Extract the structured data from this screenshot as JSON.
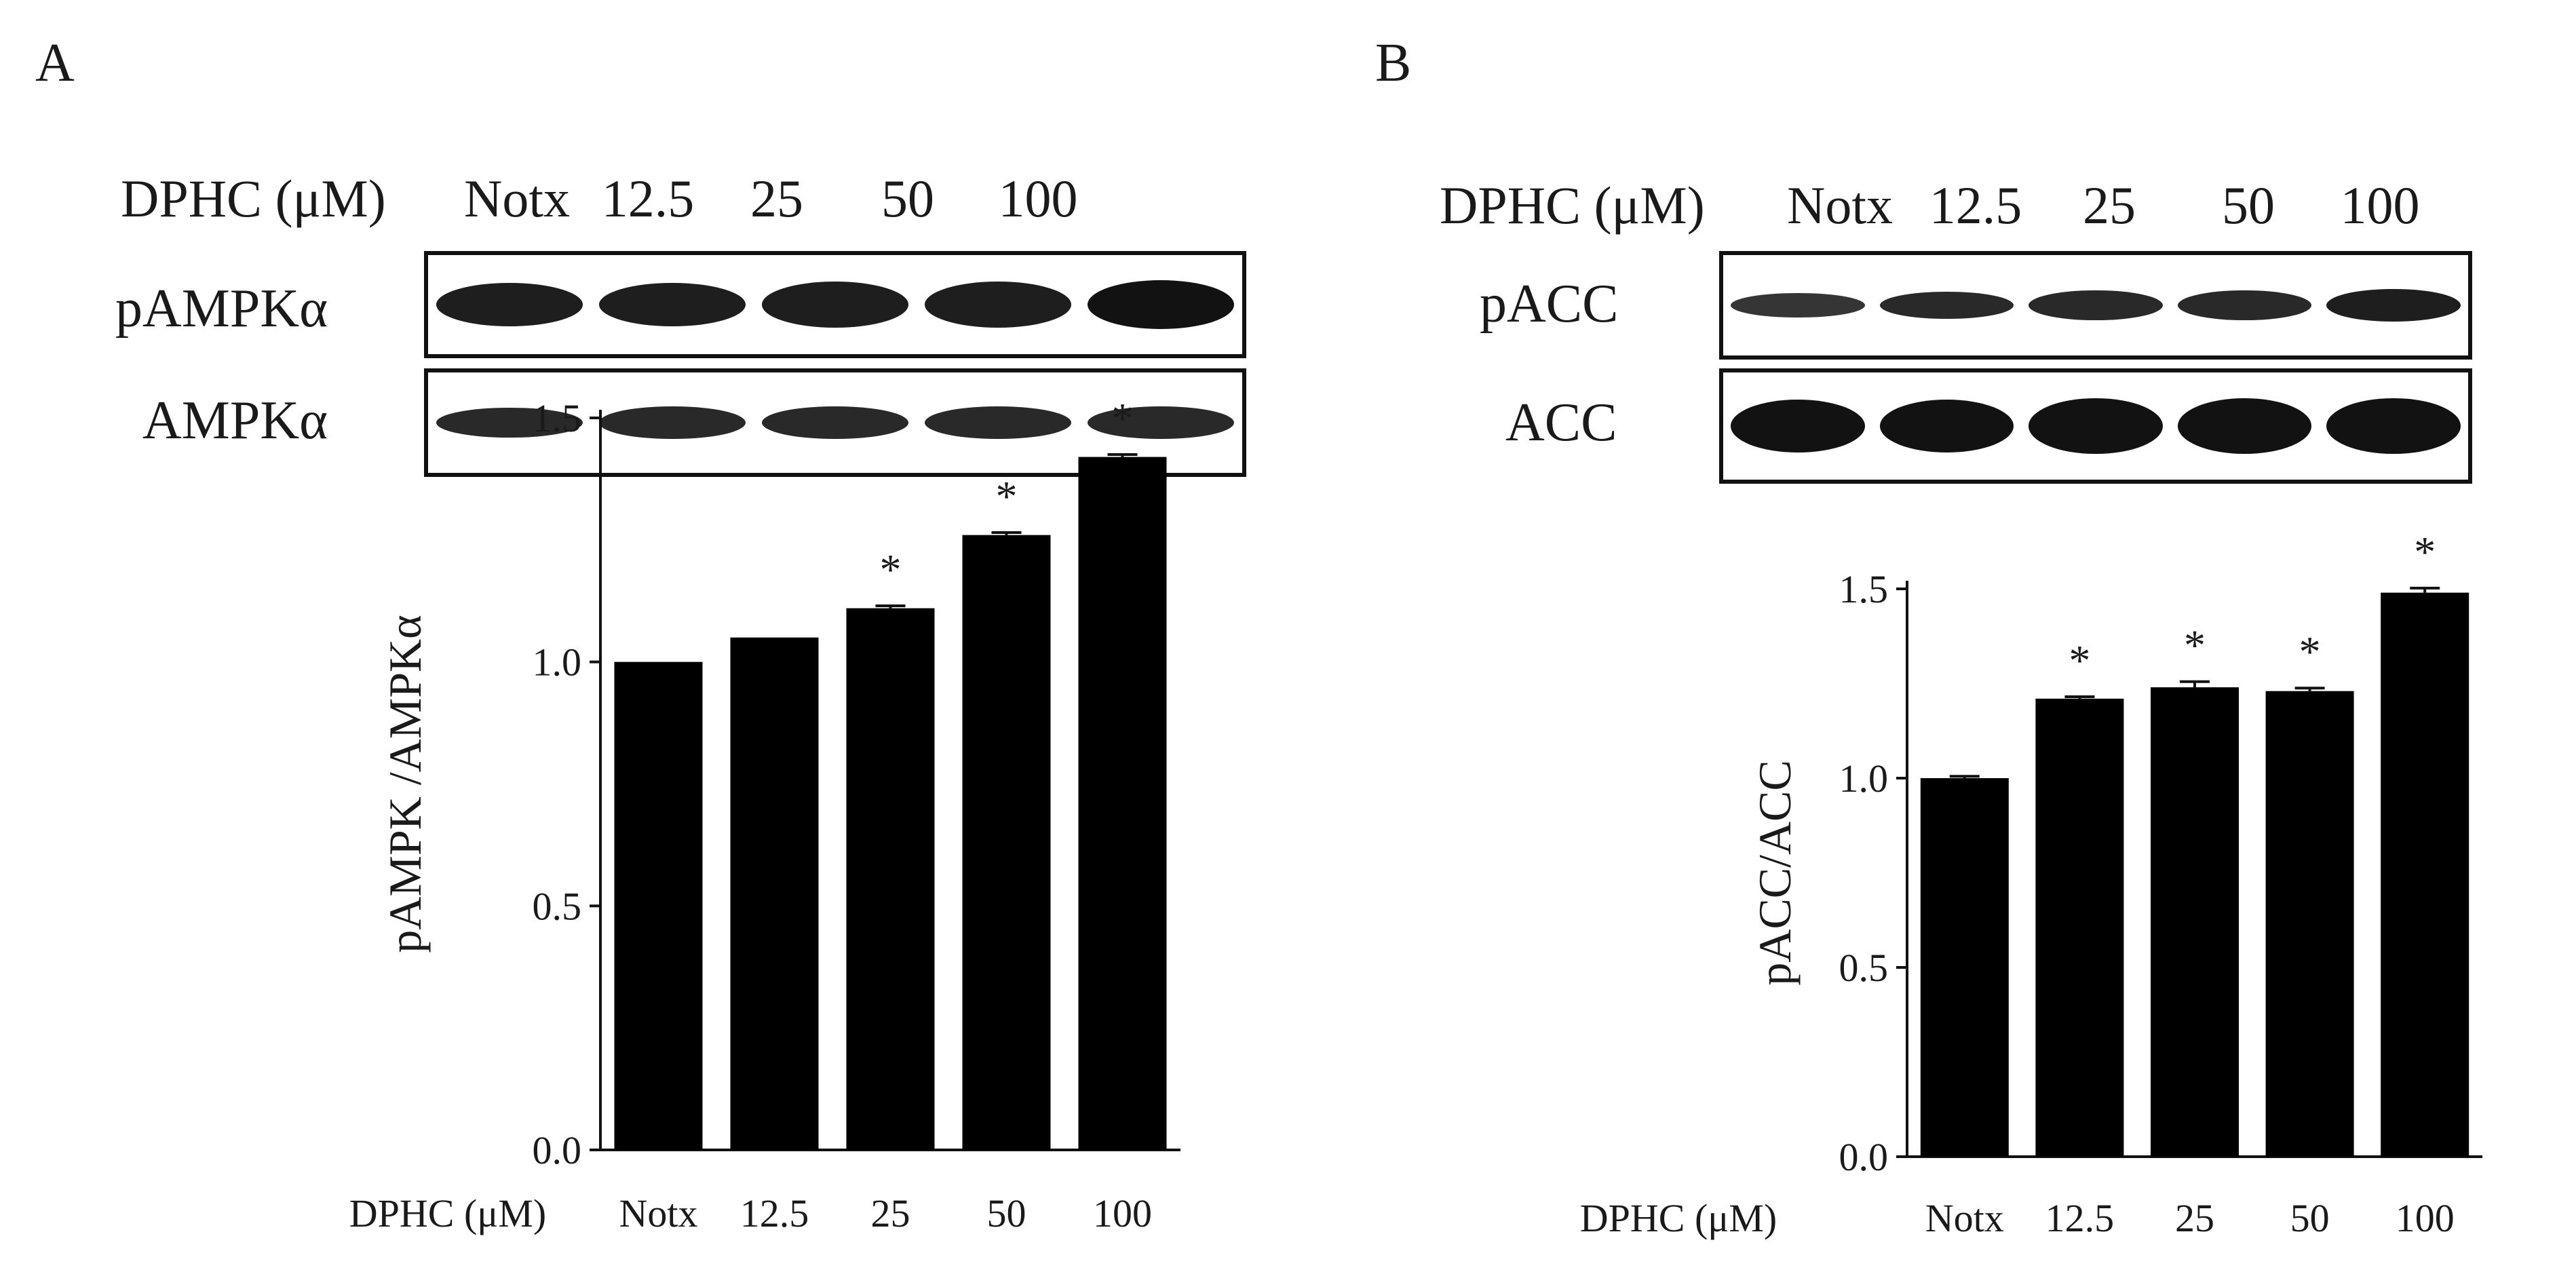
{
  "panels": [
    {
      "letter": "A",
      "blot": {
        "treatment_label": "DPHC (μM)",
        "lanes": [
          "Notx",
          "12.5",
          "25",
          "50",
          "100"
        ],
        "rows": [
          {
            "label": "pAMPKα",
            "band_intensity": [
              0.95,
              0.95,
              0.95,
              0.95,
              1.0
            ],
            "band_thickness": [
              0.8,
              0.8,
              0.85,
              0.85,
              0.9
            ]
          },
          {
            "label": "AMPKα",
            "band_intensity": [
              0.9,
              0.9,
              0.9,
              0.9,
              0.9
            ],
            "band_thickness": [
              0.55,
              0.6,
              0.6,
              0.6,
              0.6
            ]
          }
        ]
      }
    },
    {
      "letter": "B",
      "blot": {
        "treatment_label": "DPHC (μM)",
        "lanes": [
          "Notx",
          "12.5",
          "25",
          "50",
          "100"
        ],
        "rows": [
          {
            "label": "pACC",
            "band_intensity": [
              0.85,
              0.9,
              0.9,
              0.9,
              0.95
            ],
            "band_thickness": [
              0.45,
              0.5,
              0.55,
              0.55,
              0.6
            ]
          },
          {
            "label": "ACC",
            "band_intensity": [
              1.0,
              1.0,
              1.0,
              1.0,
              1.0
            ],
            "band_thickness": [
              0.9,
              0.9,
              0.95,
              0.95,
              0.95
            ]
          }
        ]
      }
    }
  ],
  "chart_data": [
    {
      "type": "bar",
      "title": "",
      "xlabel": "DPHC (μM)",
      "ylabel": "pAMPK /AMPKα",
      "categories": [
        "Notx",
        "12.5",
        "25",
        "50",
        "100"
      ],
      "values": [
        1.0,
        1.05,
        1.11,
        1.26,
        1.42
      ],
      "errors": [
        0.0,
        0.0,
        0.005,
        0.005,
        0.005
      ],
      "significance": [
        "",
        "",
        "*",
        "*",
        "*"
      ],
      "ylim": [
        0,
        1.5
      ],
      "yticks": [
        "0.0",
        "0.5",
        "1.0",
        "1.5"
      ],
      "yticks_values": [
        0,
        0.5,
        1.0,
        1.5
      ],
      "bar_color": "#000000",
      "grid": false
    },
    {
      "type": "bar",
      "title": "",
      "xlabel": "DPHC (μM)",
      "ylabel": "pACC/ACC",
      "categories": [
        "Notx",
        "12.5",
        "25",
        "50",
        "100"
      ],
      "values": [
        1.0,
        1.21,
        1.24,
        1.23,
        1.49
      ],
      "errors": [
        0.005,
        0.005,
        0.015,
        0.008,
        0.012
      ],
      "significance": [
        "",
        "*",
        "*",
        "*",
        "*"
      ],
      "ylim": [
        0,
        1.5
      ],
      "yticks": [
        "0.0",
        "0.5",
        "1.0",
        "1.5"
      ],
      "yticks_values": [
        0,
        0.5,
        1.0,
        1.5
      ],
      "bar_color": "#000000",
      "grid": false
    }
  ]
}
